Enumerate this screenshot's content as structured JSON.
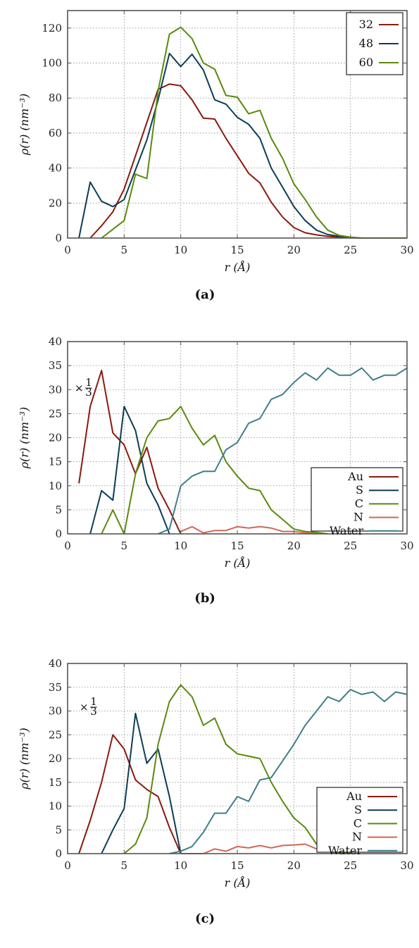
{
  "chart_data": [
    {
      "type": "line",
      "caption": "(a)",
      "xlabel": "r (Å)",
      "ylabel": "ρ(r) (nm⁻³)",
      "xlim": [
        0,
        30
      ],
      "ylim": [
        0,
        130
      ],
      "xticks": [
        0,
        5,
        10,
        15,
        20,
        25,
        30
      ],
      "yticks": [
        0,
        20,
        40,
        60,
        80,
        100,
        120
      ],
      "grid": true,
      "legend_position": "top-right",
      "annotation": "",
      "series": [
        {
          "name": "32",
          "color": "#8b1a0e",
          "x": [
            2,
            3,
            4,
            5,
            6,
            7,
            8,
            9,
            10,
            11,
            12,
            13,
            14,
            15,
            16,
            17,
            18,
            19,
            20,
            21,
            22,
            23,
            24,
            25,
            26,
            27,
            28,
            29,
            30
          ],
          "y": [
            0,
            7,
            15,
            28,
            47,
            66,
            85,
            88,
            87,
            79,
            68.5,
            68,
            57,
            47,
            37,
            31.5,
            20.5,
            12,
            6,
            3,
            1.8,
            1,
            0.5,
            0.2,
            0,
            0,
            0,
            0,
            0
          ]
        },
        {
          "name": "48",
          "color": "#0b3e57",
          "x": [
            1,
            2,
            3,
            4,
            5,
            6,
            7,
            8,
            9,
            10,
            11,
            12,
            13,
            14,
            15,
            16,
            17,
            18,
            19,
            20,
            21,
            22,
            23,
            24,
            25,
            26,
            27,
            28,
            29,
            30
          ],
          "y": [
            0,
            32,
            21,
            18,
            22,
            39,
            56,
            79,
            105.5,
            98,
            105,
            96,
            79,
            76.5,
            69,
            65,
            57,
            40,
            29,
            18,
            10,
            4.5,
            2,
            1,
            0.3,
            0,
            0,
            0,
            0,
            0
          ]
        },
        {
          "name": "60",
          "color": "#5a8a0e",
          "x": [
            3,
            4,
            5,
            6,
            7,
            8,
            9,
            10,
            11,
            12,
            13,
            14,
            15,
            16,
            17,
            18,
            19,
            20,
            21,
            22,
            23,
            24,
            25,
            26,
            27,
            28,
            29,
            30
          ],
          "y": [
            0,
            5,
            10,
            36.5,
            34,
            84,
            116.5,
            120.5,
            114,
            100,
            96.5,
            81.5,
            80.5,
            71,
            73,
            57,
            45.5,
            31,
            22,
            12,
            4.5,
            1.5,
            0.5,
            0,
            0,
            0,
            0,
            0
          ]
        }
      ]
    },
    {
      "type": "line",
      "caption": "(b)",
      "xlabel": "r (Å)",
      "ylabel": "ρ(r) (nm⁻³)",
      "xlim": [
        0,
        30
      ],
      "ylim": [
        0,
        40
      ],
      "xticks": [
        0,
        5,
        10,
        15,
        20,
        25,
        30
      ],
      "yticks": [
        0,
        5,
        10,
        15,
        20,
        25,
        30,
        35,
        40
      ],
      "grid": true,
      "legend_position": "bottom-right",
      "annotation": "×1/3",
      "series": [
        {
          "name": "Au",
          "color": "#8b1a0e",
          "x": [
            1,
            2,
            3,
            4,
            5,
            6,
            7,
            8,
            9,
            10
          ],
          "y": [
            10.5,
            26.5,
            34,
            21,
            18.5,
            12.5,
            18,
            9.5,
            5,
            0
          ]
        },
        {
          "name": "S",
          "color": "#0b3e57",
          "x": [
            2,
            3,
            4,
            5,
            6,
            7,
            8,
            9
          ],
          "y": [
            0,
            9,
            7,
            26.5,
            21.5,
            10.5,
            6,
            0
          ]
        },
        {
          "name": "C",
          "color": "#5a8a0e",
          "x": [
            3,
            4,
            5,
            6,
            7,
            8,
            9,
            10,
            11,
            12,
            13,
            14,
            15,
            16,
            17,
            18,
            19,
            20,
            21,
            22,
            23
          ],
          "y": [
            0,
            5,
            0,
            12.5,
            20,
            23.5,
            24,
            26.5,
            22,
            18.5,
            20.5,
            15,
            12,
            9.5,
            9,
            5,
            3,
            1,
            0.5,
            0.3,
            0
          ]
        },
        {
          "name": "N",
          "color": "#d06858",
          "x": [
            10,
            11,
            12,
            13,
            14,
            15,
            16,
            17,
            18,
            19,
            20,
            21,
            22
          ],
          "y": [
            0.5,
            1.5,
            0.2,
            0.7,
            0.7,
            1.5,
            1.2,
            1.5,
            1.2,
            0.5,
            0.5,
            0.2,
            0
          ]
        },
        {
          "name": "Water",
          "color": "#3e7f8a",
          "x": [
            8,
            9,
            10,
            11,
            12,
            13,
            14,
            15,
            16,
            17,
            18,
            19,
            20,
            21,
            22,
            23,
            24,
            25,
            26,
            27,
            28,
            29,
            30
          ],
          "y": [
            0,
            1,
            10,
            12,
            13,
            13,
            17.5,
            19,
            23,
            24,
            28,
            29,
            31.5,
            33.5,
            32,
            34.5,
            33,
            33,
            34.5,
            32,
            33,
            33,
            34.5
          ]
        }
      ]
    },
    {
      "type": "line",
      "caption": "(c)",
      "xlabel": "r (Å)",
      "ylabel": "ρ(r) (nm⁻³)",
      "xlim": [
        0,
        30
      ],
      "ylim": [
        0,
        40
      ],
      "xticks": [
        0,
        5,
        10,
        15,
        20,
        25,
        30
      ],
      "yticks": [
        0,
        5,
        10,
        15,
        20,
        25,
        30,
        35,
        40
      ],
      "grid": true,
      "legend_position": "bottom-right",
      "annotation": "×1/3",
      "series": [
        {
          "name": "Au",
          "color": "#8b1a0e",
          "x": [
            1,
            2,
            3,
            4,
            5,
            6,
            7,
            8,
            9,
            10
          ],
          "y": [
            0,
            7,
            15,
            25,
            22,
            15.5,
            13.5,
            12,
            5.5,
            0
          ]
        },
        {
          "name": "S",
          "color": "#0b3e57",
          "x": [
            3,
            4,
            5,
            6,
            7,
            8,
            9,
            10
          ],
          "y": [
            0,
            5,
            9.5,
            29.5,
            19,
            22,
            12,
            0
          ]
        },
        {
          "name": "C",
          "color": "#5a8a0e",
          "x": [
            5,
            6,
            7,
            8,
            9,
            10,
            11,
            12,
            13,
            14,
            15,
            16,
            17,
            18,
            19,
            20,
            21,
            22,
            23,
            24,
            25
          ],
          "y": [
            0,
            2,
            7.5,
            23,
            32,
            35.5,
            33,
            27,
            28.5,
            23,
            21,
            20.5,
            20,
            15,
            11,
            7.5,
            5.5,
            2,
            0.5,
            0.3,
            0
          ]
        },
        {
          "name": "N",
          "color": "#d06858",
          "x": [
            10,
            11,
            12,
            13,
            14,
            15,
            16,
            17,
            18,
            19,
            20,
            21,
            22,
            23,
            24
          ],
          "y": [
            0,
            0,
            0,
            1,
            0.5,
            1.5,
            1.2,
            1.7,
            1.2,
            1.7,
            1.8,
            2,
            1,
            0.5,
            0
          ]
        },
        {
          "name": "Water",
          "color": "#3e7f8a",
          "x": [
            9,
            10,
            11,
            12,
            13,
            14,
            15,
            16,
            17,
            18,
            19,
            20,
            21,
            22,
            23,
            24,
            25,
            26,
            27,
            28,
            29,
            30
          ],
          "y": [
            0,
            0.5,
            1.5,
            4.5,
            8.5,
            8.5,
            12,
            11,
            15.5,
            16,
            19.5,
            23,
            27,
            30,
            33,
            32,
            34.5,
            33.5,
            34,
            32,
            34,
            33.5
          ]
        }
      ]
    }
  ]
}
